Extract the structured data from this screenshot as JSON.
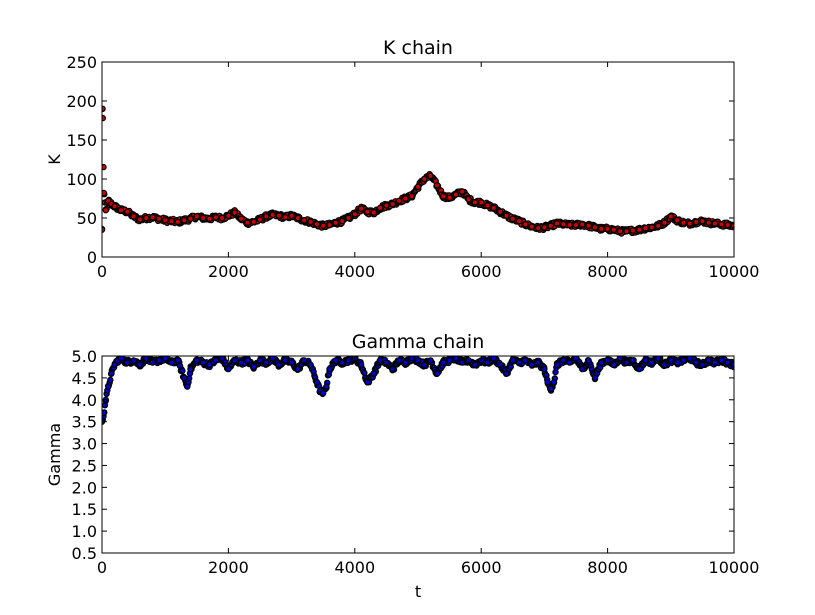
{
  "chart_data": [
    {
      "type": "scatter",
      "title": "K chain",
      "xlabel": "",
      "ylabel": "K",
      "xlim": [
        0,
        10000
      ],
      "ylim": [
        0,
        250
      ],
      "xticks": [
        "0",
        "2000",
        "4000",
        "6000",
        "8000",
        "10000"
      ],
      "yticks": [
        "0",
        "50",
        "100",
        "150",
        "200",
        "250"
      ],
      "grid": false,
      "marker_face_color": "#cc0000",
      "marker_edge_color": "#000000",
      "series": [
        {
          "x": [
            0,
            10,
            30,
            60,
            100,
            150,
            200,
            300,
            400,
            500,
            600,
            700,
            800,
            900,
            1000,
            1100,
            1200,
            1300,
            1400,
            1500,
            1600,
            1700,
            1800,
            1900,
            2000,
            2100,
            2200,
            2300,
            2400,
            2500,
            2600,
            2700,
            2800,
            2900,
            3000,
            3100,
            3200,
            3300,
            3400,
            3500,
            3600,
            3700,
            3800,
            3900,
            4000,
            4100,
            4200,
            4300,
            4400,
            4500,
            4600,
            4700,
            4800,
            4900,
            5000,
            5100,
            5200,
            5300,
            5400,
            5500,
            5600,
            5700,
            5800,
            5900,
            6000,
            6100,
            6200,
            6300,
            6400,
            6500,
            6600,
            6700,
            6800,
            6900,
            7000,
            7100,
            7200,
            7300,
            7400,
            7500,
            7600,
            7700,
            7800,
            7900,
            8000,
            8100,
            8200,
            8300,
            8400,
            8500,
            8600,
            8700,
            8800,
            8900,
            9000,
            9100,
            9200,
            9300,
            9400,
            9500,
            9600,
            9700,
            9800,
            9900,
            10000
          ],
          "y": [
            35,
            190,
            82,
            60,
            72,
            68,
            65,
            60,
            58,
            52,
            48,
            50,
            51,
            49,
            47,
            46,
            45,
            47,
            49,
            52,
            50,
            49,
            51,
            50,
            53,
            57,
            49,
            44,
            45,
            48,
            52,
            54,
            53,
            51,
            53,
            50,
            47,
            45,
            42,
            40,
            41,
            44,
            46,
            50,
            55,
            62,
            58,
            57,
            63,
            66,
            68,
            72,
            75,
            78,
            90,
            100,
            104,
            92,
            78,
            76,
            80,
            84,
            74,
            70,
            70,
            66,
            63,
            58,
            53,
            49,
            46,
            42,
            39,
            37,
            38,
            40,
            43,
            42,
            41,
            41,
            42,
            40,
            38,
            36,
            36,
            35,
            33,
            33,
            34,
            35,
            37,
            38,
            40,
            44,
            52,
            47,
            44,
            43,
            45,
            46,
            44,
            43,
            42,
            41,
            40
          ]
        }
      ]
    },
    {
      "type": "scatter",
      "title": "Gamma chain",
      "xlabel": "t",
      "ylabel": "Gamma",
      "xlim": [
        0,
        10000
      ],
      "ylim": [
        0.5,
        5.0
      ],
      "xticks": [
        "0",
        "2000",
        "4000",
        "6000",
        "8000",
        "10000"
      ],
      "yticks": [
        "0.5",
        "1.0",
        "1.5",
        "2.0",
        "2.5",
        "3.0",
        "3.5",
        "4.0",
        "4.5",
        "5.0"
      ],
      "grid": false,
      "marker_face_color": "#0000cc",
      "marker_edge_color": "#000000",
      "series": [
        {
          "x": [
            0,
            30,
            60,
            100,
            150,
            200,
            250,
            300,
            400,
            500,
            600,
            700,
            800,
            900,
            1000,
            1100,
            1200,
            1300,
            1350,
            1400,
            1500,
            1600,
            1700,
            1800,
            1900,
            2000,
            2100,
            2200,
            2300,
            2400,
            2500,
            2600,
            2700,
            2800,
            2900,
            3000,
            3100,
            3200,
            3300,
            3400,
            3450,
            3500,
            3550,
            3600,
            3700,
            3800,
            3900,
            4000,
            4100,
            4200,
            4300,
            4400,
            4500,
            4600,
            4700,
            4800,
            4900,
            5000,
            5100,
            5200,
            5300,
            5400,
            5500,
            5600,
            5700,
            5800,
            5900,
            6000,
            6100,
            6200,
            6300,
            6400,
            6500,
            6600,
            6700,
            6800,
            6900,
            7000,
            7050,
            7100,
            7150,
            7200,
            7300,
            7400,
            7500,
            7600,
            7700,
            7800,
            7900,
            8000,
            8100,
            8200,
            8300,
            8400,
            8500,
            8600,
            8700,
            8800,
            8900,
            9000,
            9100,
            9200,
            9300,
            9400,
            9500,
            9600,
            9700,
            9800,
            9900,
            10000
          ],
          "y": [
            3.5,
            3.7,
            4.0,
            4.3,
            4.6,
            4.8,
            4.9,
            4.95,
            4.85,
            4.9,
            4.8,
            4.95,
            4.85,
            4.9,
            4.95,
            4.85,
            4.9,
            4.5,
            4.3,
            4.7,
            4.9,
            4.85,
            4.8,
            4.9,
            4.95,
            4.7,
            4.9,
            4.85,
            4.9,
            4.75,
            4.9,
            4.85,
            4.95,
            4.8,
            4.9,
            4.85,
            4.7,
            4.9,
            4.8,
            4.4,
            4.2,
            4.15,
            4.3,
            4.7,
            4.9,
            4.85,
            4.9,
            4.95,
            4.8,
            4.4,
            4.6,
            4.9,
            4.85,
            4.7,
            4.9,
            4.85,
            4.95,
            4.9,
            4.8,
            4.9,
            4.6,
            4.85,
            4.9,
            4.95,
            4.85,
            4.9,
            4.8,
            4.9,
            4.85,
            4.95,
            4.8,
            4.6,
            4.9,
            4.85,
            4.9,
            4.8,
            4.85,
            4.7,
            4.4,
            4.25,
            4.4,
            4.8,
            4.9,
            4.85,
            4.95,
            4.7,
            4.9,
            4.5,
            4.85,
            4.9,
            4.8,
            4.95,
            4.85,
            4.9,
            4.7,
            4.9,
            4.85,
            4.95,
            4.8,
            4.9,
            4.85,
            4.9,
            4.95,
            4.85,
            4.8,
            4.9,
            4.85,
            4.9,
            4.85,
            4.8
          ]
        }
      ]
    }
  ]
}
